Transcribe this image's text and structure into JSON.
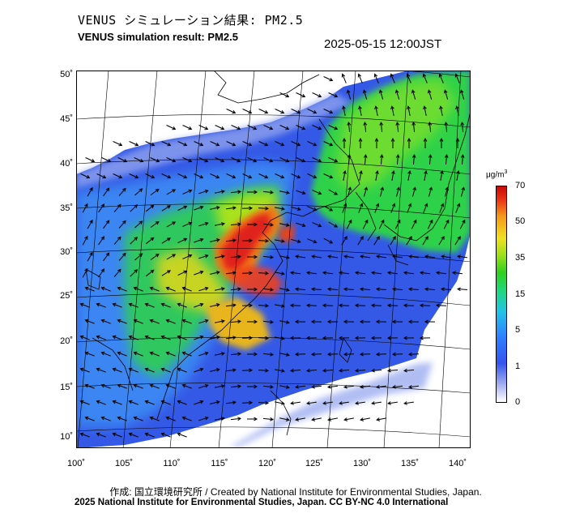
{
  "header": {
    "title_jp": "VENUS シミュレーション結果: PM2.5",
    "title_en": "VENUS simulation result: PM2.5",
    "timestamp": "2025-05-15 12:00JST"
  },
  "map": {
    "lat_ticks": [
      "50˚",
      "45˚",
      "40˚",
      "35˚",
      "30˚",
      "25˚",
      "20˚",
      "15˚",
      "10˚"
    ],
    "lon_ticks": [
      "100˚",
      "105˚",
      "110˚",
      "115˚",
      "120˚",
      "125˚",
      "130˚",
      "135˚",
      "140˚"
    ],
    "colors": {
      "background": "#ffffff",
      "coast": "#000000",
      "grid": "#000000",
      "arrow": "#000000"
    }
  },
  "colorbar": {
    "unit": "μg/m",
    "unit_sup": "3",
    "labels": [
      "70",
      "50",
      "35",
      "15",
      "5",
      "1",
      "0"
    ],
    "colors": [
      "#c80a0a",
      "#e83214",
      "#f59a1a",
      "#f0e020",
      "#9ce01a",
      "#2ed01f",
      "#1fd87a",
      "#22c4e6",
      "#2f7fff",
      "#3355ee",
      "#9aa7ee",
      "#ffffff"
    ]
  },
  "footer": {
    "credit_line1": "作成: 国立環境研究所 / Created by National Institute for Environmental Studies, Japan.",
    "credit_line2": "2025 National Institute for Environmental Studies, Japan. CC BY-NC 4.0 International"
  }
}
